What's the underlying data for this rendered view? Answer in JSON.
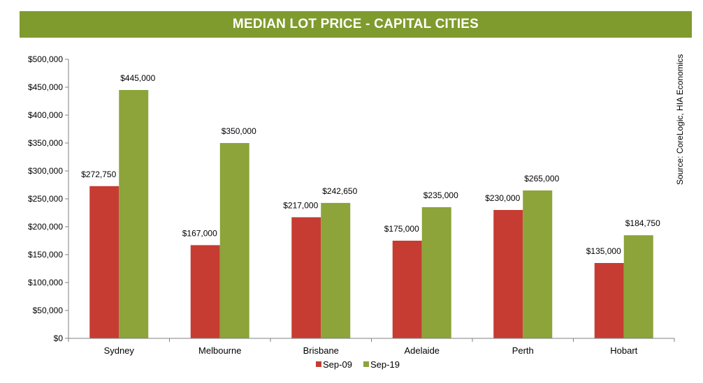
{
  "title": "MEDIAN LOT PRICE - CAPITAL CITIES",
  "source": "Source: CoreLogic, HIA Economics",
  "colors": {
    "header_bg": "#7f9a2d",
    "sep09": "#c63c32",
    "sep19": "#8ca43a"
  },
  "chart_data": {
    "type": "bar",
    "title": "MEDIAN LOT PRICE - CAPITAL CITIES",
    "xlabel": "",
    "ylabel": "",
    "ylim": [
      0,
      500000
    ],
    "yticks": [
      0,
      50000,
      100000,
      150000,
      200000,
      250000,
      300000,
      350000,
      400000,
      450000,
      500000
    ],
    "ytick_labels": [
      "$0",
      "$50,000",
      "$100,000",
      "$150,000",
      "$200,000",
      "$250,000",
      "$300,000",
      "$350,000",
      "$400,000",
      "$450,000",
      "$500,000"
    ],
    "categories": [
      "Sydney",
      "Melbourne",
      "Brisbane",
      "Adelaide",
      "Perth",
      "Hobart"
    ],
    "series": [
      {
        "name": "Sep-09",
        "values": [
          272750,
          167000,
          217000,
          175000,
          230000,
          135000
        ],
        "labels": [
          "$272,750",
          "$167,000",
          "$217,000",
          "$175,000",
          "$230,000",
          "$135,000"
        ]
      },
      {
        "name": "Sep-19",
        "values": [
          445000,
          350000,
          242650,
          235000,
          265000,
          184750
        ],
        "labels": [
          "$445,000",
          "$350,000",
          "$242,650",
          "$235,000",
          "$265,000",
          "$184,750"
        ]
      }
    ],
    "grid": false,
    "legend_position": "bottom"
  }
}
